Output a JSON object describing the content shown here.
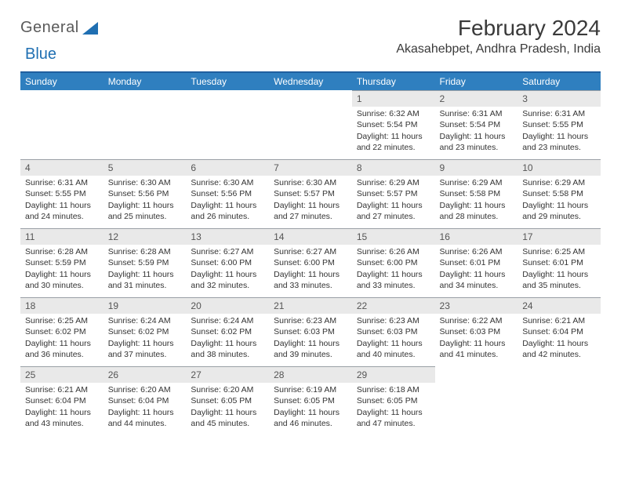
{
  "brand": {
    "part1": "General",
    "part2": "Blue"
  },
  "header": {
    "month_title": "February 2024",
    "location": "Akasahebpet, Andhra Pradesh, India"
  },
  "weekdays": [
    "Sunday",
    "Monday",
    "Tuesday",
    "Wednesday",
    "Thursday",
    "Friday",
    "Saturday"
  ],
  "first_weekday_index": 4,
  "colors": {
    "header_bg": "#2f7fbf",
    "header_border": "#1f5f9f",
    "daynum_bg": "#e9e9e9",
    "daynum_border": "#9aa0a6",
    "text": "#333333",
    "brand_blue": "#1f6fb2"
  },
  "days": [
    {
      "n": 1,
      "sunrise": "6:32 AM",
      "sunset": "5:54 PM",
      "daylight": "11 hours and 22 minutes."
    },
    {
      "n": 2,
      "sunrise": "6:31 AM",
      "sunset": "5:54 PM",
      "daylight": "11 hours and 23 minutes."
    },
    {
      "n": 3,
      "sunrise": "6:31 AM",
      "sunset": "5:55 PM",
      "daylight": "11 hours and 23 minutes."
    },
    {
      "n": 4,
      "sunrise": "6:31 AM",
      "sunset": "5:55 PM",
      "daylight": "11 hours and 24 minutes."
    },
    {
      "n": 5,
      "sunrise": "6:30 AM",
      "sunset": "5:56 PM",
      "daylight": "11 hours and 25 minutes."
    },
    {
      "n": 6,
      "sunrise": "6:30 AM",
      "sunset": "5:56 PM",
      "daylight": "11 hours and 26 minutes."
    },
    {
      "n": 7,
      "sunrise": "6:30 AM",
      "sunset": "5:57 PM",
      "daylight": "11 hours and 27 minutes."
    },
    {
      "n": 8,
      "sunrise": "6:29 AM",
      "sunset": "5:57 PM",
      "daylight": "11 hours and 27 minutes."
    },
    {
      "n": 9,
      "sunrise": "6:29 AM",
      "sunset": "5:58 PM",
      "daylight": "11 hours and 28 minutes."
    },
    {
      "n": 10,
      "sunrise": "6:29 AM",
      "sunset": "5:58 PM",
      "daylight": "11 hours and 29 minutes."
    },
    {
      "n": 11,
      "sunrise": "6:28 AM",
      "sunset": "5:59 PM",
      "daylight": "11 hours and 30 minutes."
    },
    {
      "n": 12,
      "sunrise": "6:28 AM",
      "sunset": "5:59 PM",
      "daylight": "11 hours and 31 minutes."
    },
    {
      "n": 13,
      "sunrise": "6:27 AM",
      "sunset": "6:00 PM",
      "daylight": "11 hours and 32 minutes."
    },
    {
      "n": 14,
      "sunrise": "6:27 AM",
      "sunset": "6:00 PM",
      "daylight": "11 hours and 33 minutes."
    },
    {
      "n": 15,
      "sunrise": "6:26 AM",
      "sunset": "6:00 PM",
      "daylight": "11 hours and 33 minutes."
    },
    {
      "n": 16,
      "sunrise": "6:26 AM",
      "sunset": "6:01 PM",
      "daylight": "11 hours and 34 minutes."
    },
    {
      "n": 17,
      "sunrise": "6:25 AM",
      "sunset": "6:01 PM",
      "daylight": "11 hours and 35 minutes."
    },
    {
      "n": 18,
      "sunrise": "6:25 AM",
      "sunset": "6:02 PM",
      "daylight": "11 hours and 36 minutes."
    },
    {
      "n": 19,
      "sunrise": "6:24 AM",
      "sunset": "6:02 PM",
      "daylight": "11 hours and 37 minutes."
    },
    {
      "n": 20,
      "sunrise": "6:24 AM",
      "sunset": "6:02 PM",
      "daylight": "11 hours and 38 minutes."
    },
    {
      "n": 21,
      "sunrise": "6:23 AM",
      "sunset": "6:03 PM",
      "daylight": "11 hours and 39 minutes."
    },
    {
      "n": 22,
      "sunrise": "6:23 AM",
      "sunset": "6:03 PM",
      "daylight": "11 hours and 40 minutes."
    },
    {
      "n": 23,
      "sunrise": "6:22 AM",
      "sunset": "6:03 PM",
      "daylight": "11 hours and 41 minutes."
    },
    {
      "n": 24,
      "sunrise": "6:21 AM",
      "sunset": "6:04 PM",
      "daylight": "11 hours and 42 minutes."
    },
    {
      "n": 25,
      "sunrise": "6:21 AM",
      "sunset": "6:04 PM",
      "daylight": "11 hours and 43 minutes."
    },
    {
      "n": 26,
      "sunrise": "6:20 AM",
      "sunset": "6:04 PM",
      "daylight": "11 hours and 44 minutes."
    },
    {
      "n": 27,
      "sunrise": "6:20 AM",
      "sunset": "6:05 PM",
      "daylight": "11 hours and 45 minutes."
    },
    {
      "n": 28,
      "sunrise": "6:19 AM",
      "sunset": "6:05 PM",
      "daylight": "11 hours and 46 minutes."
    },
    {
      "n": 29,
      "sunrise": "6:18 AM",
      "sunset": "6:05 PM",
      "daylight": "11 hours and 47 minutes."
    }
  ],
  "labels": {
    "sunrise": "Sunrise: ",
    "sunset": "Sunset: ",
    "daylight": "Daylight: "
  }
}
